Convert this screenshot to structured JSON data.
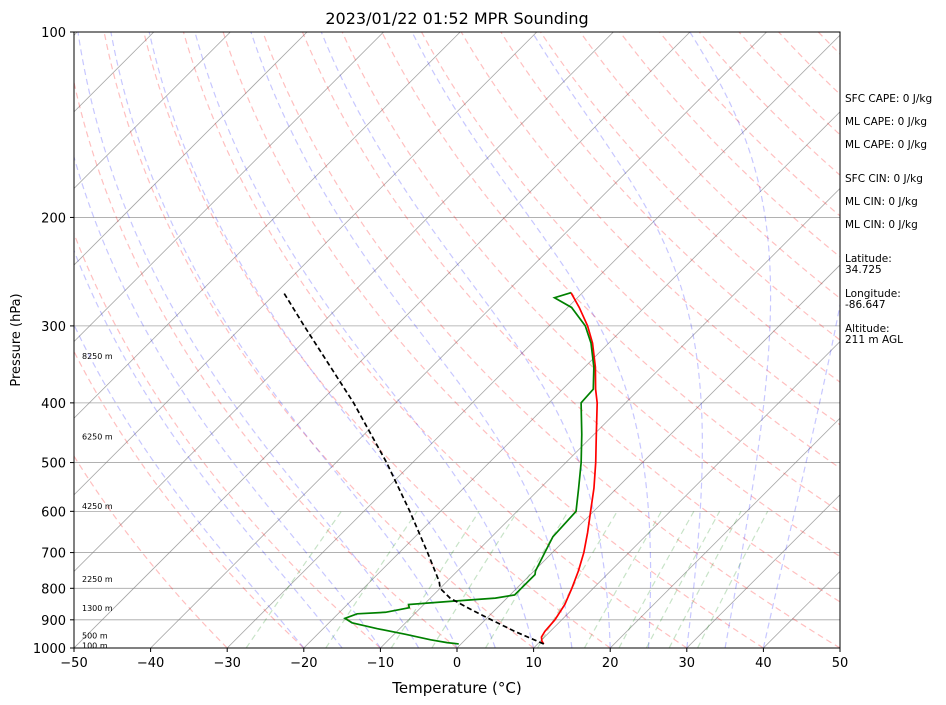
{
  "chart_data": {
    "type": "line",
    "title": "2023/01/22 01:52 MPR Sounding",
    "xlabel": "Temperature (°C)",
    "ylabel": "Pressure (hPa)",
    "xlim": [
      -50,
      50
    ],
    "ylim": [
      1000,
      100
    ],
    "y_scale": "log",
    "grid": true,
    "skew_t": true,
    "x_ticks": [
      "−50",
      "−40",
      "−30",
      "−20",
      "−10",
      "0",
      "10",
      "20",
      "30",
      "40",
      "50"
    ],
    "y_ticks": [
      "100",
      "200",
      "300",
      "400",
      "500",
      "600",
      "700",
      "800",
      "900",
      "1000"
    ],
    "height_labels": [
      {
        "p": 995,
        "label": "100 m"
      },
      {
        "p": 958,
        "label": "500 m"
      },
      {
        "p": 865,
        "label": "1300 m"
      },
      {
        "p": 775,
        "label": "2250 m"
      },
      {
        "p": 590,
        "label": "4250 m"
      },
      {
        "p": 455,
        "label": "6250 m"
      },
      {
        "p": 337,
        "label": "8250 m"
      }
    ],
    "series": [
      {
        "key": "temperature",
        "color": "#ff0000",
        "style": "solid",
        "p": [
          985,
          975,
          960,
          940,
          900,
          850,
          800,
          750,
          700,
          650,
          600,
          550,
          500,
          450,
          400,
          380,
          350,
          320,
          300,
          280,
          265
        ],
        "t": [
          10.8,
          10.2,
          9.6,
          9.3,
          9.1,
          8.4,
          7.2,
          5.8,
          4.1,
          2.0,
          -0.4,
          -3.0,
          -6.1,
          -9.7,
          -13.7,
          -15.7,
          -18.6,
          -22.1,
          -25.0,
          -28.5,
          -31.5
        ]
      },
      {
        "key": "dewpoint",
        "color": "#008000",
        "style": "solid",
        "p": [
          985,
          980,
          970,
          960,
          950,
          930,
          910,
          895,
          880,
          875,
          860,
          850,
          840,
          830,
          820,
          800,
          780,
          760,
          750,
          700,
          660,
          600,
          550,
          500,
          450,
          400,
          380,
          350,
          320,
          300,
          280,
          270,
          265
        ],
        "t": [
          -0.3,
          -2.0,
          -4.5,
          -6.5,
          -8.5,
          -13.0,
          -17.0,
          -18.5,
          -17.5,
          -14.0,
          -11.5,
          -12.0,
          -7.0,
          -1.5,
          0.6,
          0.6,
          0.6,
          0.6,
          0.2,
          -1.0,
          -2.0,
          -2.3,
          -5.0,
          -8.0,
          -11.6,
          -15.8,
          -16.0,
          -18.8,
          -22.3,
          -25.3,
          -29.5,
          -33.0,
          -31.5
        ]
      },
      {
        "key": "parcel",
        "color": "#000000",
        "style": "dashed",
        "p": [
          985,
          940,
          900,
          860,
          830,
          800,
          780,
          700,
          600,
          500,
          400,
          300,
          265
        ],
        "t": [
          10.8,
          5.4,
          0.8,
          -3.9,
          -7.4,
          -10.0,
          -11.0,
          -16.3,
          -24.0,
          -33.4,
          -45.5,
          -62.0,
          -69.0
        ]
      }
    ],
    "annotations": {
      "sfc_cape": "SFC CAPE: 0 J/kg",
      "ml_cape_1": "ML CAPE: 0 J/kg",
      "ml_cape_2": "ML CAPE: 0 J/kg",
      "sfc_cin": "SFC CIN: 0 J/kg",
      "ml_cin_1": "ML CIN: 0 J/kg",
      "ml_cin_2": "ML CIN: 0 J/kg",
      "latitude_label": "Latitude:",
      "latitude_value": "34.725",
      "longitude_label": "Longitude:",
      "longitude_value": "-86.647",
      "altitude_label": "Altitude:",
      "altitude_value": "211 m AGL"
    },
    "colors": {
      "dry_adiabats": "#ff0000",
      "moist_adiabats": "#0000ff",
      "mixing_ratio": "#008000",
      "isotherms": "#808080",
      "isobars": "#808080"
    }
  }
}
